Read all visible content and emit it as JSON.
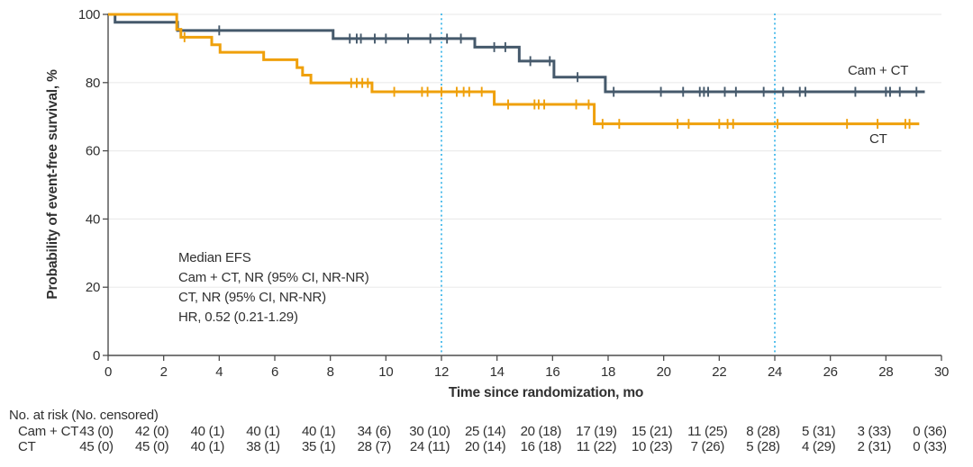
{
  "chart_data": {
    "type": "line",
    "subtype": "kaplan-meier-step",
    "title": "",
    "xlabel": "Time since randomization, mo",
    "ylabel": "Probability of event-free survival, %",
    "xlim": [
      0,
      30
    ],
    "ylim": [
      0,
      100
    ],
    "x_ticks": [
      0,
      2,
      4,
      6,
      8,
      10,
      12,
      14,
      16,
      18,
      20,
      22,
      24,
      26,
      28,
      30
    ],
    "y_ticks": [
      0,
      20,
      40,
      60,
      80,
      100
    ],
    "grid": "horizontal-light",
    "legend_position": "labels-on-plot-right",
    "reference_lines_x": [
      12,
      24
    ],
    "annotation": {
      "lines": [
        "Median EFS",
        "Cam + CT, NR (95% CI, NR-NR)",
        "CT, NR (95% CI, NR-NR)",
        "HR, 0.52 (0.21-1.29)"
      ]
    },
    "series": [
      {
        "name": "Cam + CT",
        "color": "#45596b",
        "steps": [
          [
            0,
            100
          ],
          [
            0.25,
            97.7
          ],
          [
            2.5,
            95.3
          ],
          [
            8.1,
            92.9
          ],
          [
            13.2,
            90.4
          ],
          [
            14.8,
            86.3
          ],
          [
            16.05,
            81.6
          ],
          [
            17.9,
            77.3
          ]
        ],
        "end_time": 29.4,
        "censor_times": [
          4.0,
          8.7,
          8.95,
          9.1,
          9.6,
          10.0,
          10.8,
          11.6,
          12.2,
          12.7,
          13.9,
          14.3,
          15.2,
          15.9,
          16.9,
          18.2,
          19.9,
          20.7,
          21.3,
          21.45,
          21.6,
          22.2,
          22.6,
          23.6,
          24.3,
          24.9,
          25.1,
          26.9,
          28.0,
          28.15,
          28.5,
          29.1
        ]
      },
      {
        "name": "CT",
        "color": "#efa00b",
        "steps": [
          [
            0,
            100
          ],
          [
            2.47,
            95.6
          ],
          [
            2.62,
            93.3
          ],
          [
            3.73,
            91.1
          ],
          [
            4.03,
            88.9
          ],
          [
            5.6,
            86.7
          ],
          [
            6.8,
            84.4
          ],
          [
            7.0,
            82.2
          ],
          [
            7.3,
            79.9
          ],
          [
            9.5,
            77.3
          ],
          [
            13.9,
            73.6
          ],
          [
            17.5,
            67.9
          ]
        ],
        "end_time": 29.2,
        "censor_times": [
          2.75,
          8.75,
          8.95,
          9.15,
          9.35,
          10.3,
          11.3,
          11.5,
          12.0,
          12.55,
          12.8,
          13.0,
          13.45,
          14.4,
          15.35,
          15.5,
          15.7,
          16.85,
          17.3,
          17.8,
          18.4,
          20.5,
          20.9,
          22.0,
          22.3,
          22.5,
          24.1,
          26.6,
          27.7,
          28.7,
          28.85
        ]
      }
    ]
  },
  "risk_table": {
    "header": "No. at risk (No. censored)",
    "times": [
      0,
      2,
      4,
      6,
      8,
      10,
      12,
      14,
      16,
      18,
      20,
      22,
      24,
      26,
      28,
      30
    ],
    "rows": [
      {
        "label": "Cam + CT",
        "values": [
          "43 (0)",
          "42 (0)",
          "40 (1)",
          "40 (1)",
          "40 (1)",
          "34 (6)",
          "30 (10)",
          "25 (14)",
          "20 (18)",
          "17 (19)",
          "15 (21)",
          "11 (25)",
          "8 (28)",
          "5 (31)",
          "3 (33)",
          "0 (36)"
        ]
      },
      {
        "label": "CT",
        "values": [
          "45 (0)",
          "45 (0)",
          "40 (1)",
          "38 (1)",
          "35 (1)",
          "28 (7)",
          "24 (11)",
          "20 (14)",
          "16 (18)",
          "11 (22)",
          "10 (23)",
          "7 (26)",
          "5 (28)",
          "4 (29)",
          "2 (31)",
          "0 (33)"
        ]
      }
    ]
  },
  "style": {
    "axis_color": "#4d4d4d",
    "grid_color": "#ececec",
    "reference_line_color": "#3ab5e9",
    "text_color": "#303030",
    "background": "#ffffff"
  }
}
